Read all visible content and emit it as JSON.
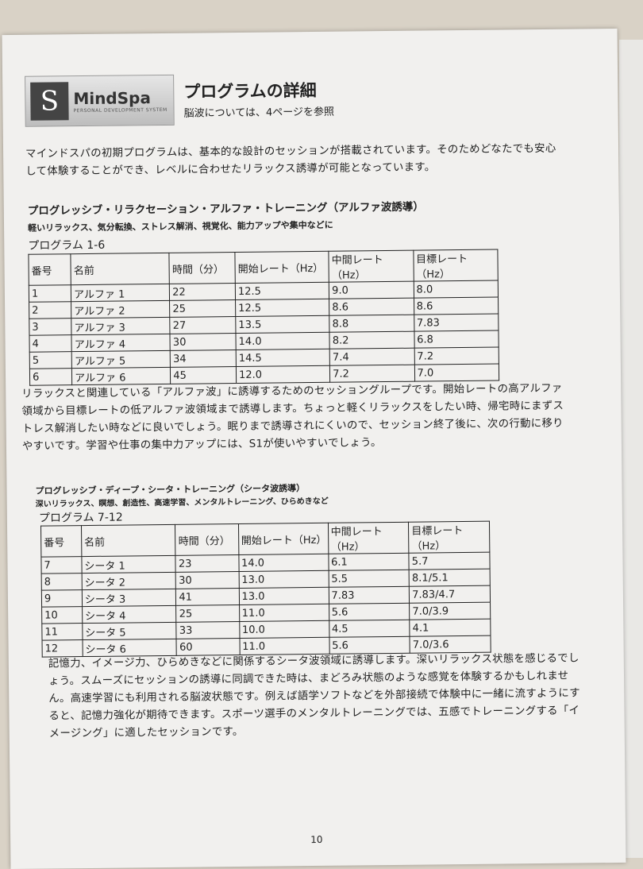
{
  "header": {
    "logo_name": "MindSpa",
    "logo_tagline": "PERSONAL DEVELOPMENT SYSTEM",
    "title": "プログラムの詳細",
    "subtitle": "脳波については、4ページを参照"
  },
  "intro": "マインドスパの初期プログラムは、基本的な設計のセッションが搭載されています。そのためどなたでも安心して体験することができ、レベルに合わせたリラックス誘導が可能となっています。",
  "alpha": {
    "heading": "プログレッシブ・リラクセーション・アルファ・トレーニング（アルファ波誘導）",
    "uses": "軽いリラックス、気分転換、ストレス解消、視覚化、能力アップや集中などに",
    "program_range": "プログラム 1-6",
    "columns": [
      "番号",
      "名前",
      "時間（分）",
      "開始レート（Hz）",
      "中間レート（Hz）",
      "目標レート（Hz）"
    ],
    "rows": [
      [
        "1",
        "アルファ 1",
        "22",
        "12.5",
        "9.0",
        "8.0"
      ],
      [
        "2",
        "アルファ 2",
        "25",
        "12.5",
        "8.6",
        "8.6"
      ],
      [
        "3",
        "アルファ 3",
        "27",
        "13.5",
        "8.8",
        "7.83"
      ],
      [
        "4",
        "アルファ 4",
        "30",
        "14.0",
        "8.2",
        "6.8"
      ],
      [
        "5",
        "アルファ 5",
        "34",
        "14.5",
        "7.4",
        "7.2"
      ],
      [
        "6",
        "アルファ 6",
        "45",
        "12.0",
        "7.2",
        "7.0"
      ]
    ],
    "description": "リラックスと関連している「アルファ波」に誘導するためのセッショングループです。開始レートの高アルファ領域から目標レートの低アルファ波領域まで誘導します。ちょっと軽くリラックスをしたい時、帰宅時にまずストレス解消したい時などに良いでしょう。眠りまで誘導されにくいので、セッション終了後に、次の行動に移りやすいです。学習や仕事の集中力アップには、S1が使いやすいでしょう。"
  },
  "theta": {
    "heading": "プログレッシブ・ディープ・シータ・トレーニング（シータ波誘導）",
    "uses": "深いリラックス、瞑想、創造性、高速学習、メンタルトレーニング、ひらめきなど",
    "program_range": "プログラム 7-12",
    "columns": [
      "番号",
      "名前",
      "時間（分）",
      "開始レート（Hz）",
      "中間レート（Hz）",
      "目標レート（Hz）"
    ],
    "rows": [
      [
        "7",
        "シータ 1",
        "23",
        "14.0",
        "6.1",
        "5.7"
      ],
      [
        "8",
        "シータ 2",
        "30",
        "13.0",
        "5.5",
        "8.1/5.1"
      ],
      [
        "9",
        "シータ 3",
        "41",
        "13.0",
        "7.83",
        "7.83/4.7"
      ],
      [
        "10",
        "シータ 4",
        "25",
        "11.0",
        "5.6",
        "7.0/3.9"
      ],
      [
        "11",
        "シータ 5",
        "33",
        "10.0",
        "4.5",
        "4.1"
      ],
      [
        "12",
        "シータ 6",
        "60",
        "11.0",
        "5.6",
        "7.0/3.6"
      ]
    ],
    "description": "記憶力、イメージ力、ひらめきなどに関係するシータ波領域に誘導します。深いリラックス状態を感じるでしょう。スムーズにセッションの誘導に同調できた時は、まどろみ状態のような感覚を体験するかもしれません。高速学習にも利用される脳波状態です。例えば語学ソフトなどを外部接続で体験中に一緒に流すようにすると、記憶力強化が期待できます。スポーツ選手のメンタルトレーニングでは、五感でトレーニングする「イメージング」に適したセッションです。"
  },
  "page_number": "10"
}
